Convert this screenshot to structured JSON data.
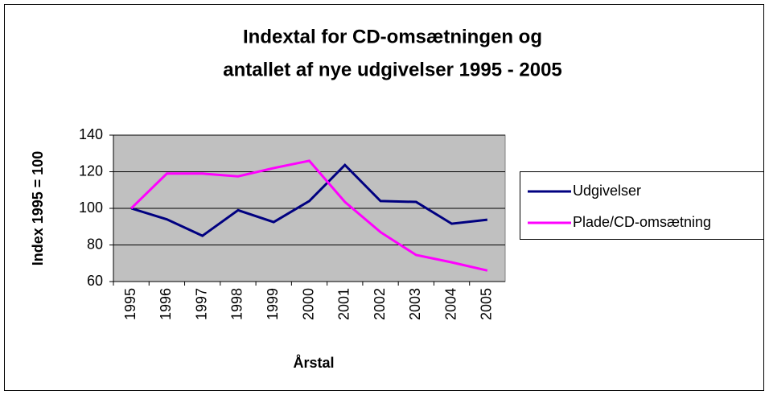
{
  "chart_data": {
    "type": "line",
    "title": [
      "Indextal for CD-omsætningen og",
      "antallet af nye udgivelser 1995 - 2005"
    ],
    "x_label": "Årstal",
    "y_label": "Index 1995 = 100",
    "categories": [
      "1995",
      "1996",
      "1997",
      "1998",
      "1999",
      "2000",
      "2001",
      "2002",
      "2003",
      "2004",
      "2005"
    ],
    "series": [
      {
        "name": "Udgivelser",
        "color": "#000080",
        "values": [
          100,
          94,
          85,
          99,
          92.5,
          104,
          123.7,
          104,
          103.5,
          91.6,
          93.8
        ]
      },
      {
        "name": "Plade/CD-omsætning",
        "color": "#ff00ff",
        "values": [
          100,
          119,
          119,
          117.5,
          122,
          126,
          103.5,
          87,
          74.5,
          70.5,
          66
        ]
      }
    ],
    "ylim": [
      60,
      140
    ],
    "yticks": [
      60,
      80,
      100,
      120,
      140
    ],
    "grid": true,
    "legend": "right"
  }
}
